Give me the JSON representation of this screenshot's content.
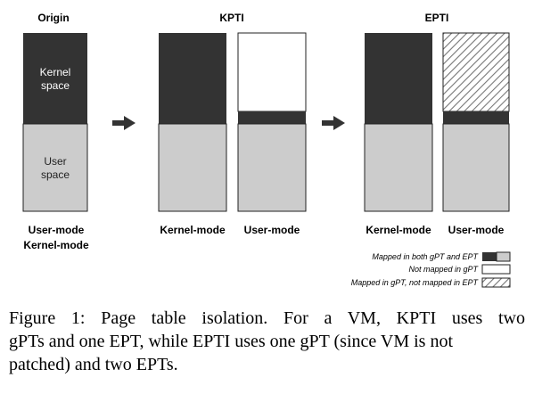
{
  "columns": {
    "origin": {
      "title": "Origin",
      "kernel_label_1": "Kernel",
      "kernel_label_2": "space",
      "user_label_1": "User",
      "user_label_2": "space",
      "mode_1": "User-mode",
      "mode_2": "Kernel-mode"
    },
    "kpti": {
      "title": "KPTI",
      "left_mode": "Kernel-mode",
      "right_mode": "User-mode"
    },
    "epti": {
      "title": "EPTI",
      "left_mode": "Kernel-mode",
      "right_mode": "User-mode"
    }
  },
  "legend": {
    "both": "Mapped in both gPT and EPT",
    "not_mapped": "Not mapped  in gPT",
    "gpt_not_ept": "Mapped in gPT, not mapped in EPT"
  },
  "caption": {
    "line1": "Figure 1:  Page table isolation.  For a VM, KPTI uses two",
    "line2": "gPTs and one EPT, while EPTI uses one gPT (since VM is not",
    "line3": "patched) and two EPTs."
  },
  "colors": {
    "kernel": "#333333",
    "user": "#cccccc",
    "unmapped": "#ffffff",
    "border": "#222222"
  }
}
